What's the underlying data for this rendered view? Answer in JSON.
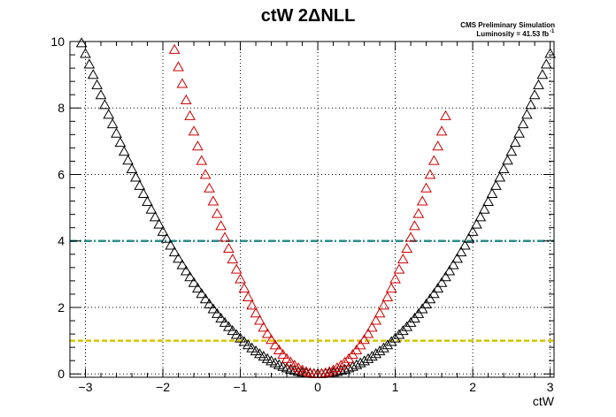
{
  "chart_data": {
    "type": "scatter",
    "title": "ctW 2ΔNLL",
    "annotation_line1": "CMS Preliminary Simulation",
    "annotation_line2": "Luminosity = 41.53 fb",
    "annotation_sup": "-1",
    "xlabel": "ctW",
    "ylabel": "",
    "xlim": [
      -3.2,
      3.05
    ],
    "ylim": [
      -0.1,
      10.0
    ],
    "xticks": [
      -3,
      -2,
      -1,
      0,
      1,
      2,
      3
    ],
    "xtick_labels": [
      "−3",
      "−2",
      "−1",
      "0",
      "1",
      "2",
      "3"
    ],
    "yticks": [
      0,
      2,
      4,
      6,
      8,
      10
    ],
    "ytick_labels": [
      "0",
      "2",
      "4",
      "6",
      "8",
      "10"
    ],
    "grid": true,
    "marker": "open-triangle",
    "reference_lines": [
      {
        "y": 4,
        "color": "#2a8c8c",
        "style": "dash-dot"
      },
      {
        "y": 1,
        "color": "#d4c400",
        "style": "dashed"
      }
    ],
    "series": [
      {
        "color": "#000000",
        "a": 1.07,
        "x_min": -3.15,
        "x_max": 3.02,
        "step": 0.05
      },
      {
        "color": "#cc0000",
        "a": 2.85,
        "x_min": -1.85,
        "x_max": 1.65,
        "step": 0.05
      }
    ]
  }
}
